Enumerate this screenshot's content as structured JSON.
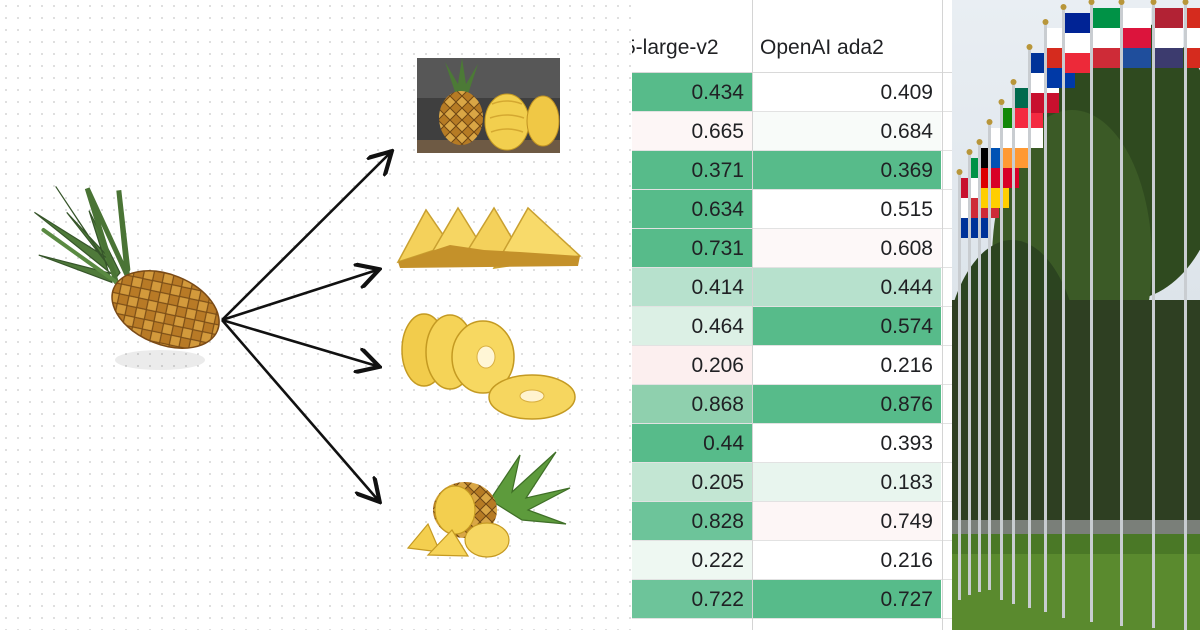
{
  "table": {
    "headers": [
      "5-large-v2",
      "OpenAI ada2"
    ],
    "rows": [
      {
        "a": "0.434",
        "b": "0.409",
        "ca": "#57bb8a",
        "cb": "#ffffff"
      },
      {
        "a": "0.665",
        "b": "0.684",
        "ca": "#fdf6f6",
        "cb": "#f8fbf9"
      },
      {
        "a": "0.371",
        "b": "0.369",
        "ca": "#57bb8a",
        "cb": "#57bb8a"
      },
      {
        "a": "0.634",
        "b": "0.515",
        "ca": "#57bb8a",
        "cb": "#ffffff"
      },
      {
        "a": "0.731",
        "b": "0.608",
        "ca": "#57bb8a",
        "cb": "#fdf8f8"
      },
      {
        "a": "0.414",
        "b": "0.444",
        "ca": "#b7e1cd",
        "cb": "#b7e1cd"
      },
      {
        "a": "0.464",
        "b": "0.574",
        "ca": "#dcf0e5",
        "cb": "#57bb8a"
      },
      {
        "a": "0.206",
        "b": "0.216",
        "ca": "#fcefef",
        "cb": "#ffffff"
      },
      {
        "a": "0.868",
        "b": "0.876",
        "ca": "#8fd0ae",
        "cb": "#57bb8a"
      },
      {
        "a": "0.44",
        "b": "0.393",
        "ca": "#57bb8a",
        "cb": "#ffffff"
      },
      {
        "a": "0.205",
        "b": "0.183",
        "ca": "#c3e6d3",
        "cb": "#e8f5ee"
      },
      {
        "a": "0.828",
        "b": "0.749",
        "ca": "#6dc49a",
        "cb": "#fdf6f6"
      },
      {
        "a": "0.222",
        "b": "0.216",
        "ca": "#eef8f2",
        "cb": "#ffffff"
      },
      {
        "a": "0.722",
        "b": "0.727",
        "ca": "#6dc49a",
        "cb": "#57bb8a"
      }
    ]
  },
  "colors": {
    "green_strong": "#57bb8a",
    "green_light": "#b7e1cd",
    "pineapple_body": "#c88a2a",
    "pineapple_leaf": "#4f7a3a",
    "fruit_flesh": "#f5d25a",
    "arrow": "#111111"
  },
  "icons": {
    "left_panel": [
      "whole-pineapple-icon",
      "pineapple-halves-photo-icon",
      "pineapple-wedges-icon",
      "pineapple-rings-icon",
      "cut-pineapple-icon",
      "arrow-icon"
    ],
    "right_panel": [
      "flag-pole-icon",
      "flag-icon",
      "tree-icon"
    ]
  }
}
